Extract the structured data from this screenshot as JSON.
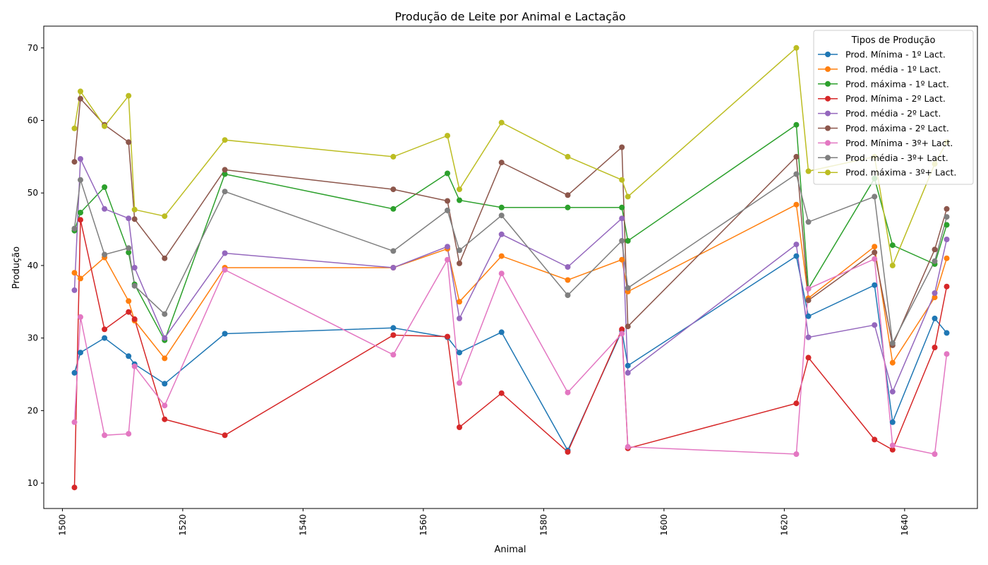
{
  "chart_data": {
    "type": "line",
    "title": "Produção de Leite por Animal e Lactação",
    "xlabel": "Animal",
    "ylabel": "Produção",
    "xlim": [
      1496.9,
      1652.1
    ],
    "ylim": [
      6.5,
      73.0
    ],
    "xticks": [
      1500,
      1520,
      1540,
      1560,
      1580,
      1600,
      1620,
      1640
    ],
    "yticks": [
      10,
      20,
      30,
      40,
      50,
      60,
      70
    ],
    "grid": false,
    "legend_title": "Tipos de Produção",
    "legend_position": "top-right",
    "x": [
      1502,
      1503,
      1507,
      1511,
      1512,
      1517,
      1527,
      1555,
      1564,
      1566,
      1573,
      1584,
      1593,
      1594,
      1622,
      1624,
      1635,
      1638,
      1645,
      1647
    ],
    "series": [
      {
        "name": "Prod. Mínima - 1º Lact.",
        "color": "#1f77b4",
        "values": [
          25.2,
          28.0,
          30.0,
          27.5,
          26.4,
          23.7,
          30.6,
          31.4,
          30.1,
          28.0,
          30.8,
          14.5,
          31.0,
          26.2,
          41.3,
          33.0,
          37.3,
          18.4,
          32.7,
          30.7
        ]
      },
      {
        "name": "Prod. média - 1º Lact.",
        "color": "#ff7f0e",
        "values": [
          39.0,
          38.2,
          41.1,
          35.1,
          32.4,
          27.2,
          39.7,
          39.7,
          42.3,
          35.0,
          41.3,
          38.0,
          40.8,
          36.4,
          48.4,
          35.5,
          42.6,
          26.6,
          35.6,
          41.0
        ]
      },
      {
        "name": "Prod. máxima - 1º Lact.",
        "color": "#2ca02c",
        "values": [
          44.8,
          47.3,
          50.8,
          41.8,
          37.4,
          29.7,
          52.6,
          47.8,
          52.7,
          49.0,
          48.0,
          48.0,
          48.0,
          43.4,
          59.4,
          36.8,
          52.0,
          42.8,
          40.2,
          45.6
        ]
      },
      {
        "name": "Prod. Mínima - 2º Lact.",
        "color": "#d62728",
        "values": [
          9.4,
          46.3,
          31.2,
          33.6,
          32.6,
          18.8,
          16.6,
          30.4,
          30.2,
          17.7,
          22.4,
          14.3,
          31.2,
          14.8,
          21.0,
          27.3,
          16.0,
          14.6,
          28.7,
          37.1
        ]
      },
      {
        "name": "Prod. média - 2º Lact.",
        "color": "#9467bd",
        "values": [
          36.6,
          54.7,
          47.8,
          46.5,
          39.7,
          30.0,
          41.7,
          39.7,
          42.6,
          32.7,
          44.3,
          39.8,
          46.5,
          25.2,
          42.9,
          30.1,
          31.8,
          22.6,
          36.2,
          43.6
        ]
      },
      {
        "name": "Prod. máxima - 2º Lact.",
        "color": "#8c564b",
        "values": [
          54.3,
          63.0,
          59.4,
          57.0,
          46.4,
          41.0,
          53.2,
          50.5,
          48.9,
          40.3,
          54.2,
          49.7,
          56.3,
          31.6,
          55.0,
          35.2,
          41.8,
          29.0,
          42.2,
          47.8
        ]
      },
      {
        "name": "Prod. Mínima - 3º+ Lact.",
        "color": "#e377c2",
        "values": [
          18.4,
          32.9,
          16.6,
          16.8,
          26.1,
          20.7,
          39.4,
          27.7,
          40.8,
          23.8,
          38.9,
          22.5,
          30.6,
          15.0,
          14.0,
          36.8,
          40.9,
          15.2,
          14.0,
          27.8
        ]
      },
      {
        "name": "Prod. média - 3º+ Lact.",
        "color": "#7f7f7f",
        "values": [
          45.1,
          51.8,
          41.5,
          42.4,
          37.2,
          33.3,
          50.2,
          42.0,
          47.6,
          42.1,
          46.9,
          35.9,
          43.4,
          36.9,
          52.6,
          46.0,
          49.5,
          29.3,
          40.6,
          46.7
        ]
      },
      {
        "name": "Prod. máxima - 3º+ Lact.",
        "color": "#bcbd22",
        "values": [
          58.9,
          64.0,
          59.2,
          63.4,
          47.7,
          46.8,
          57.3,
          55.0,
          57.9,
          50.5,
          59.7,
          55.0,
          51.8,
          49.5,
          70.0,
          53.0,
          55.0,
          40.0,
          54.0,
          57.0
        ]
      }
    ]
  }
}
